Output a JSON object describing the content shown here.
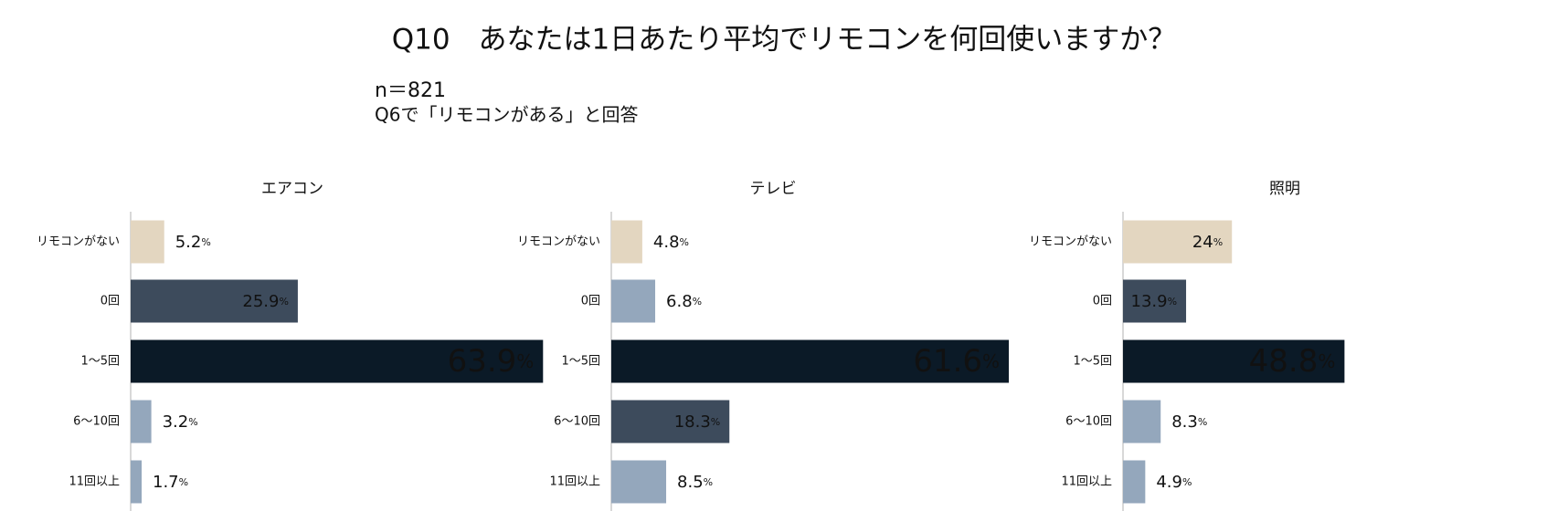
{
  "header": {
    "title": "Q10　あなたは1日あたり平均でリモコンを何回使いますか？",
    "notes": [
      "n＝821",
      "Q6で「リモコンがある」と回答"
    ]
  },
  "chart_data": [
    {
      "type": "hbar",
      "title": "エアコン",
      "categories": [
        "リモコンがない",
        "0回",
        "1〜5回",
        "6〜10回",
        "11回以上"
      ],
      "values": [
        5.2,
        25.9,
        63.9,
        3.2,
        1.7
      ],
      "value_labels": [
        "5.2%",
        "25.9%",
        "63.9%",
        "3.2%",
        "1.7%"
      ],
      "colors": [
        "#e3d6c0",
        "#3d4b5c",
        "#0b1a27",
        "#94a7bc",
        "#94a7bc"
      ],
      "xlim": [
        0,
        64
      ]
    },
    {
      "type": "hbar",
      "title": "テレビ",
      "categories": [
        "リモコンがない",
        "0回",
        "1〜5回",
        "6〜10回",
        "11回以上"
      ],
      "values": [
        4.8,
        6.8,
        61.6,
        18.3,
        8.5
      ],
      "value_labels": [
        "4.8%",
        "6.8%",
        "61.6%",
        "18.3%",
        "8.5%"
      ],
      "colors": [
        "#e3d6c0",
        "#94a7bc",
        "#0b1a27",
        "#3d4b5c",
        "#94a7bc"
      ],
      "xlim": [
        0,
        64
      ]
    },
    {
      "type": "hbar",
      "title": "照明",
      "categories": [
        "リモコンがない",
        "0回",
        "1〜5回",
        "6〜10回",
        "11回以上"
      ],
      "values": [
        24,
        13.9,
        48.8,
        8.3,
        4.9
      ],
      "value_labels": [
        "24%",
        "13.9%",
        "48.8%",
        "8.3%",
        "4.9%"
      ],
      "colors": [
        "#e3d6c0",
        "#3d4b5c",
        "#0b1a27",
        "#94a7bc",
        "#94a7bc"
      ],
      "xlim": [
        0,
        91
      ]
    }
  ]
}
